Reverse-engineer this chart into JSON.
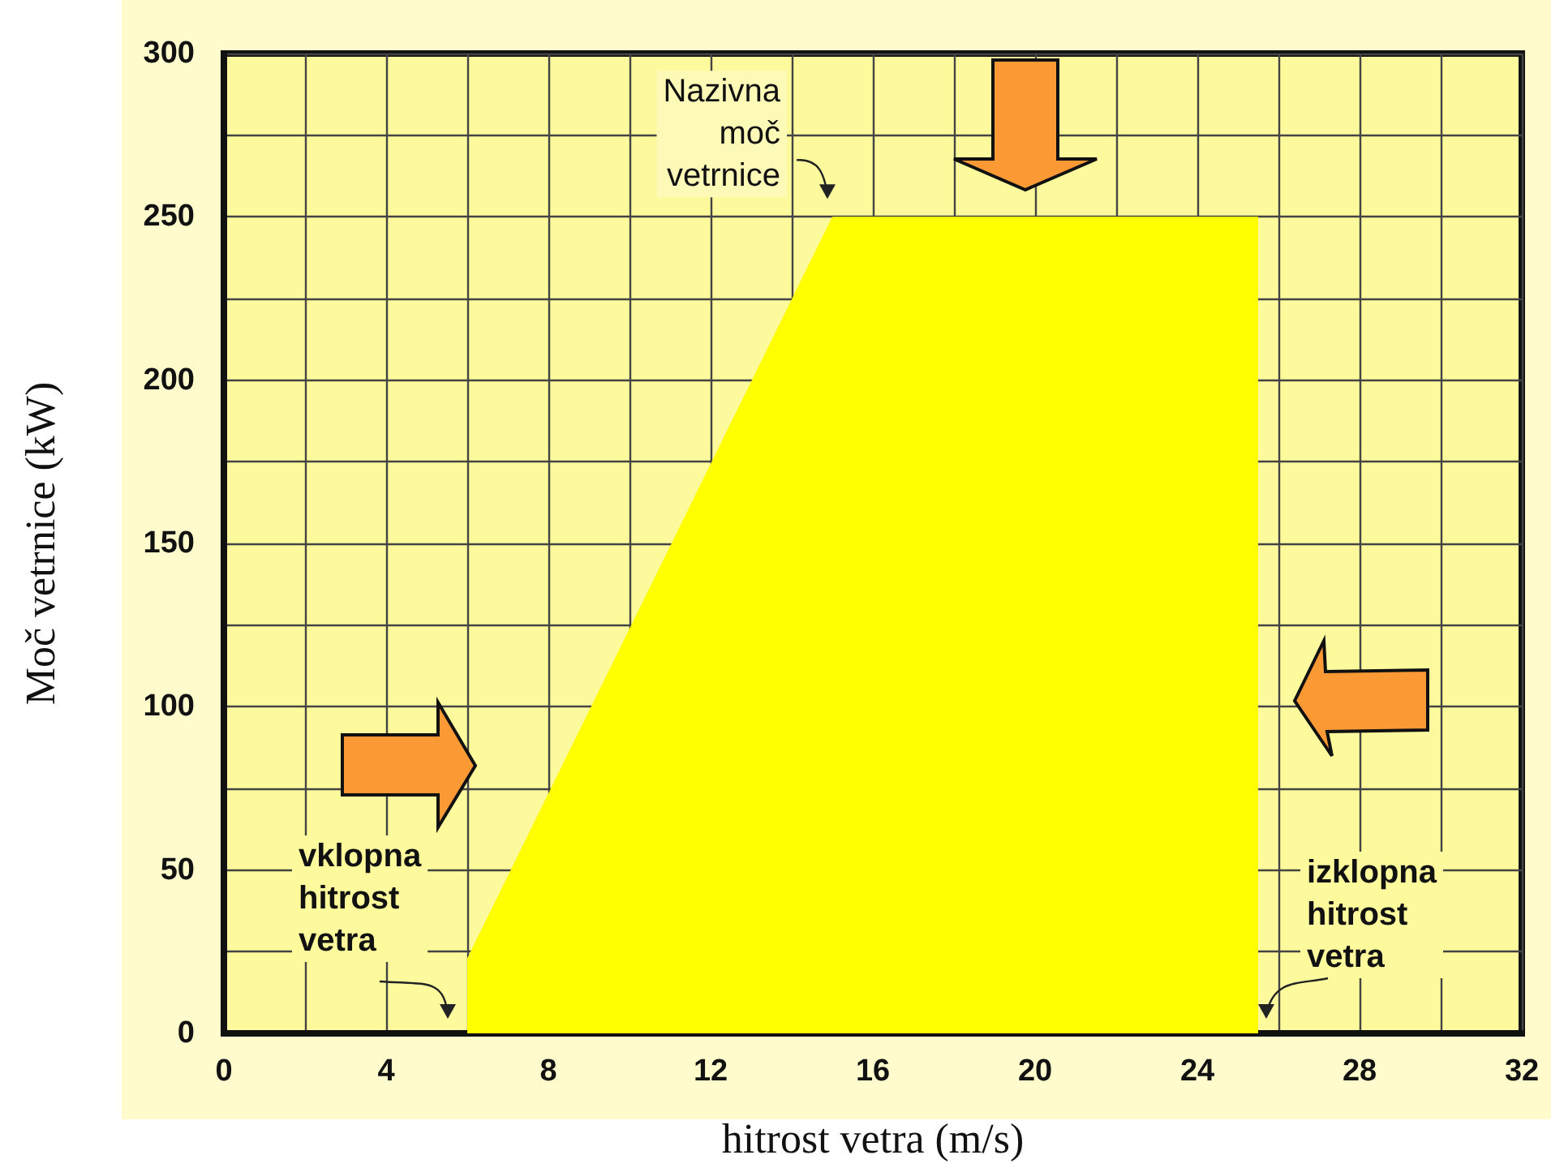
{
  "chart_data": {
    "type": "area",
    "xlabel": "hitrost vetra (m/s)",
    "ylabel": "Moč vetrnice (kW)",
    "x": [
      6,
      6,
      15,
      25.5,
      25.5
    ],
    "series": [
      {
        "color": "#ffff00",
        "values": [
          0,
          23,
          250,
          250,
          0
        ]
      }
    ],
    "xlim": [
      0,
      32
    ],
    "ylim": [
      0,
      300
    ],
    "xticks": [
      0,
      {
        "value": 2,
        "label": null
      },
      4,
      {
        "value": 6,
        "label": null
      },
      8,
      {
        "value": 10,
        "label": null
      },
      12,
      {
        "value": 14,
        "label": null
      },
      16,
      {
        "value": 18,
        "label": null
      },
      20,
      {
        "value": 22,
        "label": null
      },
      24,
      {
        "value": 26,
        "label": null
      },
      28,
      {
        "value": 30,
        "label": null
      },
      32
    ],
    "yticks": [
      0,
      {
        "value": 25,
        "label": null
      },
      50,
      {
        "value": 75,
        "label": null
      },
      100,
      {
        "value": 125,
        "label": null
      },
      150,
      {
        "value": 175,
        "label": null
      },
      200,
      {
        "value": 225,
        "label": null
      },
      250,
      {
        "value": 275,
        "label": null
      },
      300
    ],
    "grid": true,
    "marker": "none",
    "annotations": [
      {
        "text": "Nazivna moč vetrnice",
        "x": 15,
        "y": 250
      },
      {
        "text": "vklopna hitrost vetra",
        "x": 6,
        "y": 0
      },
      {
        "text": "izklopna hitrost vetra",
        "x": 25.5,
        "y": 0
      }
    ]
  }
}
